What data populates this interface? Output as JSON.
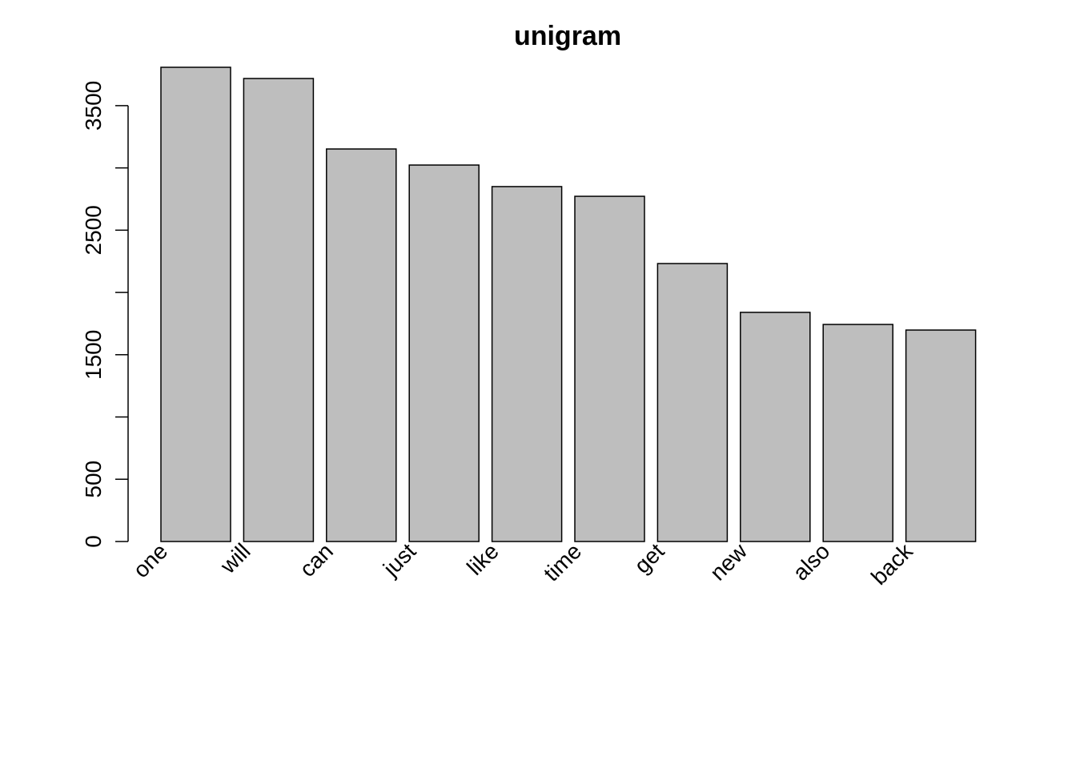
{
  "chart_data": {
    "type": "bar",
    "title": "unigram",
    "categories": [
      "one",
      "will",
      "can",
      "just",
      "like",
      "time",
      "get",
      "new",
      "also",
      "back"
    ],
    "values": [
      3808,
      3718,
      3152,
      3023,
      2850,
      2772,
      2232,
      1840,
      1743,
      1698
    ],
    "color": "#bebebe",
    "ylim": [
      0,
      3808
    ],
    "yticks": [
      0,
      500,
      1500,
      2500,
      3500
    ],
    "minor_yticks": [
      1000,
      2000,
      3000
    ]
  }
}
